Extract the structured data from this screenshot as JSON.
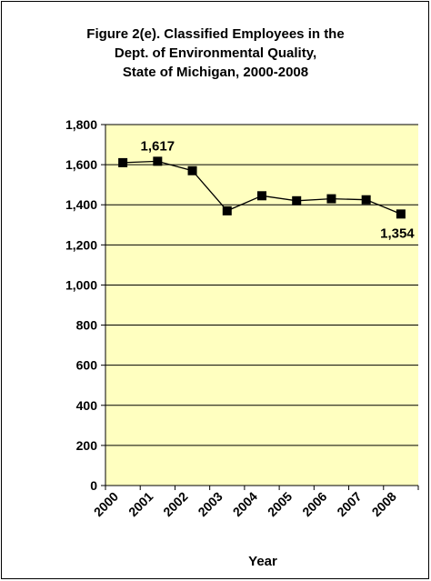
{
  "chart_data": {
    "type": "line",
    "title_lines": [
      "Figure 2(e). Classified Employees in the",
      "Dept. of Environmental Quality,",
      "State of Michigan, 2000-2008"
    ],
    "xlabel": "Year",
    "ylabel": "",
    "categories": [
      "2000",
      "2001",
      "2002",
      "2003",
      "2004",
      "2005",
      "2006",
      "2007",
      "2008"
    ],
    "values": [
      1610,
      1617,
      1570,
      1370,
      1445,
      1420,
      1430,
      1425,
      1354
    ],
    "ylim": [
      0,
      1800
    ],
    "yticks": [
      0,
      200,
      400,
      600,
      800,
      1000,
      1200,
      1400,
      1600,
      1800
    ],
    "ytick_labels": [
      "0",
      "200",
      "400",
      "600",
      "800",
      "1,000",
      "1,200",
      "1,400",
      "1,600",
      "1,800"
    ],
    "data_labels": [
      {
        "index": 1,
        "text": "1,617"
      },
      {
        "index": 8,
        "text": "1,354"
      }
    ],
    "grid": true,
    "colors": {
      "plot_background": "#FFFFC0",
      "line": "#000000",
      "marker": "#000000",
      "gridline": "#000000"
    }
  }
}
